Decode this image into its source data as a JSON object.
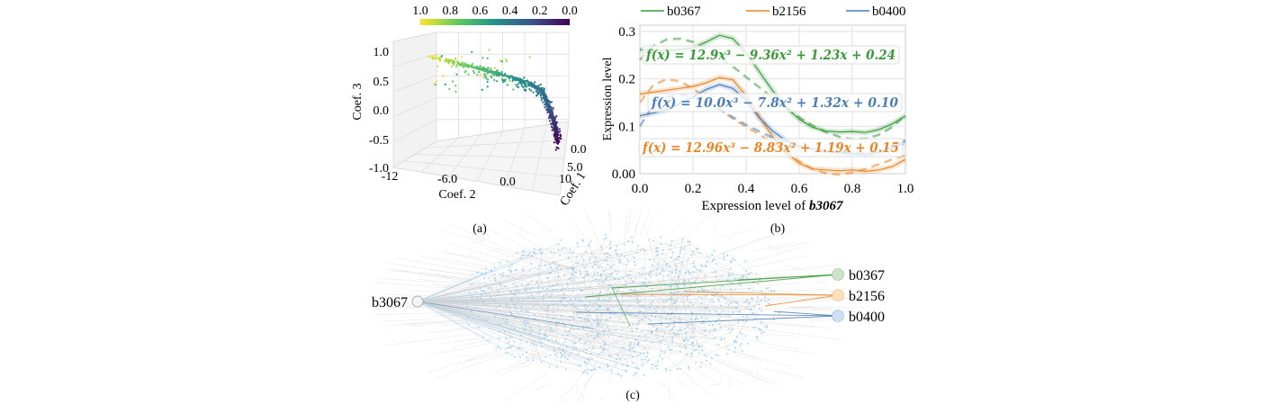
{
  "figure": {
    "captions": {
      "a": "(a)",
      "b": "(b)",
      "c": "(c)"
    }
  },
  "chart_data": [
    {
      "id": "a",
      "type": "scatter",
      "projection": "3d",
      "title": "",
      "xlabel": "Coef. 2",
      "ylabel": "Coef. 1",
      "zlabel": "Coef. 3",
      "x_ticks": [
        "-12",
        "-6.0",
        "0.0"
      ],
      "y_ticks": [
        "0.0",
        "5.0",
        "10"
      ],
      "z_ticks": [
        "1.0",
        "0.5",
        "0.0",
        "-0.5",
        "-1.0"
      ],
      "xlim": [
        -12,
        3
      ],
      "ylim": [
        0,
        10
      ],
      "zlim": [
        -1.0,
        1.0
      ],
      "colorbar": {
        "colormap": "viridis_r",
        "ticks": [
          "1.0",
          "0.8",
          "0.6",
          "0.4",
          "0.2",
          "0.0"
        ],
        "range": [
          1.0,
          0.0
        ],
        "placement": "top"
      },
      "description": "Dense point cloud along a diagonal band from (Coef.2≈-9, Coef.3≈0.9, color≈1.0 yellow) to a dense cluster near (Coef.2≈0, Coef.3≈0.3, color≈0.4 teal) that bends downward to (Coef.3≈-0.6, color≈0.0 purple)",
      "points_sample": [
        {
          "coef2": -9.5,
          "coef3": 0.92,
          "c": 1.0
        },
        {
          "coef2": -8.5,
          "coef3": 0.88,
          "c": 0.95
        },
        {
          "coef2": -7.0,
          "coef3": 0.8,
          "c": 0.85
        },
        {
          "coef2": -5.5,
          "coef3": 0.72,
          "c": 0.75
        },
        {
          "coef2": -4.0,
          "coef3": 0.64,
          "c": 0.65
        },
        {
          "coef2": -2.5,
          "coef3": 0.55,
          "c": 0.55
        },
        {
          "coef2": -1.0,
          "coef3": 0.45,
          "c": 0.45
        },
        {
          "coef2": 0.0,
          "coef3": 0.3,
          "c": 0.4
        },
        {
          "coef2": 0.5,
          "coef3": 0.05,
          "c": 0.3
        },
        {
          "coef2": 1.0,
          "coef3": -0.25,
          "c": 0.15
        },
        {
          "coef2": 1.2,
          "coef3": -0.55,
          "c": 0.05
        }
      ]
    },
    {
      "id": "b",
      "type": "line",
      "title": "",
      "xlabel_prefix": "Expression level of ",
      "xlabel_gene": "b3067",
      "ylabel": "Expression level",
      "xlim": [
        0.0,
        1.0
      ],
      "ylim": [
        0.0,
        0.31
      ],
      "x_ticks": [
        "0.0",
        "0.2",
        "0.4",
        "0.6",
        "0.8",
        "1.0"
      ],
      "y_ticks": [
        {
          "value": 0.0,
          "label": "0.00"
        },
        {
          "value": 0.1,
          "label": "0.1"
        },
        {
          "value": 0.2,
          "label": "0.2"
        },
        {
          "value": 0.3,
          "label": "0.3"
        }
      ],
      "grid": true,
      "legend_placement": "top",
      "x": [
        0.0,
        0.05,
        0.1,
        0.15,
        0.2,
        0.25,
        0.3,
        0.35,
        0.4,
        0.45,
        0.5,
        0.55,
        0.6,
        0.65,
        0.7,
        0.75,
        0.8,
        0.85,
        0.9,
        0.95,
        1.0
      ],
      "series": [
        {
          "name": "b0367",
          "color": "#3a9a3a",
          "values": [
            0.262,
            0.258,
            0.26,
            0.262,
            0.265,
            0.278,
            0.292,
            0.285,
            0.255,
            0.215,
            0.175,
            0.14,
            0.115,
            0.098,
            0.09,
            0.088,
            0.089,
            0.087,
            0.093,
            0.105,
            0.122
          ],
          "fit": [
            0.24,
            0.269,
            0.283,
            0.285,
            0.278,
            0.264,
            0.246,
            0.226,
            0.204,
            0.182,
            0.16,
            0.139,
            0.119,
            0.102,
            0.088,
            0.078,
            0.073,
            0.074,
            0.082,
            0.098,
            0.124
          ],
          "equation": "f(x) = 12.9x³ − 9.36x² + 1.23x + 0.24"
        },
        {
          "name": "b2156",
          "color": "#e8862a",
          "values": [
            0.168,
            0.172,
            0.176,
            0.18,
            0.184,
            0.192,
            0.203,
            0.198,
            0.165,
            0.12,
            0.078,
            0.045,
            0.022,
            0.01,
            0.008,
            0.006,
            0.008,
            0.005,
            0.008,
            0.015,
            0.03
          ],
          "fit": [
            0.15,
            0.187,
            0.199,
            0.195,
            0.18,
            0.159,
            0.137,
            0.116,
            0.099,
            0.083,
            0.065,
            0.045,
            0.026,
            0.01,
            0.001,
            -0.002,
            0.002,
            0.01,
            0.02,
            0.03,
            0.039
          ],
          "equation": "f(x) = 12.96x³ − 8.83x² + 1.19x + 0.15"
        },
        {
          "name": "b0400",
          "color": "#4a7fb8",
          "values": [
            0.122,
            0.128,
            0.135,
            0.148,
            0.162,
            0.178,
            0.188,
            0.18,
            0.155,
            0.118,
            0.09,
            0.07,
            0.058,
            0.052,
            0.048,
            0.045,
            0.042,
            0.04,
            0.045,
            0.055,
            0.07
          ],
          "fit": [
            0.1,
            0.144,
            0.163,
            0.167,
            0.162,
            0.15,
            0.135,
            0.119,
            0.103,
            0.089,
            0.076,
            0.066,
            0.058,
            0.052,
            0.047,
            0.044,
            0.043,
            0.044,
            0.047,
            0.055,
            0.064
          ],
          "equation": "f(x) = 10.0x³ − 7.8x² + 1.32x + 0.10"
        }
      ]
    }
  ],
  "network": {
    "type": "graph",
    "source_node": {
      "label": "b3067",
      "color": "#f4f4f4"
    },
    "target_nodes": [
      {
        "label": "b0367",
        "color": "#cfe3c8",
        "edge_color": "#3a9a3a"
      },
      {
        "label": "b2156",
        "color": "#fde0b8",
        "edge_color": "#e8862a"
      },
      {
        "label": "b0400",
        "color": "#cfe0f5",
        "edge_color": "#4a7fb8"
      }
    ],
    "background_node_color": "#8cc8ec",
    "background_edge_color": "#d6d6d6"
  }
}
